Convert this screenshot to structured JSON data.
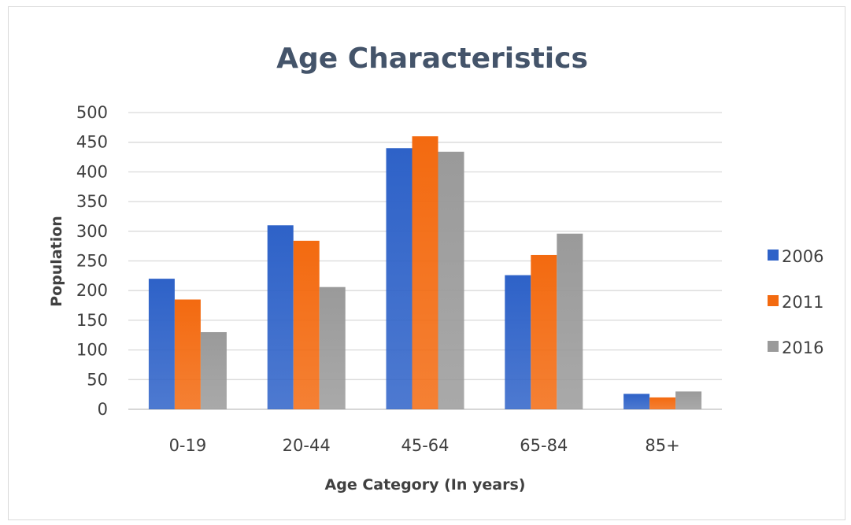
{
  "chart_data": {
    "type": "bar",
    "title": "Age Characteristics",
    "xlabel": "Age Category (In years)",
    "ylabel": "Population",
    "categories": [
      "0-19",
      "20-44",
      "45-64",
      "65-84",
      "85+"
    ],
    "series": [
      {
        "name": "2006",
        "values": [
          220,
          310,
          440,
          226,
          26
        ],
        "color": "#2e62c8"
      },
      {
        "name": "2011",
        "values": [
          185,
          284,
          460,
          260,
          20
        ],
        "color": "#f36a10"
      },
      {
        "name": "2016",
        "values": [
          130,
          206,
          434,
          296,
          30
        ],
        "color": "#9a9a9a"
      }
    ],
    "ylim": [
      0,
      500
    ],
    "yticks": [
      0,
      50,
      100,
      150,
      200,
      250,
      300,
      350,
      400,
      450,
      500
    ],
    "grid": true,
    "legend_position": "right"
  }
}
